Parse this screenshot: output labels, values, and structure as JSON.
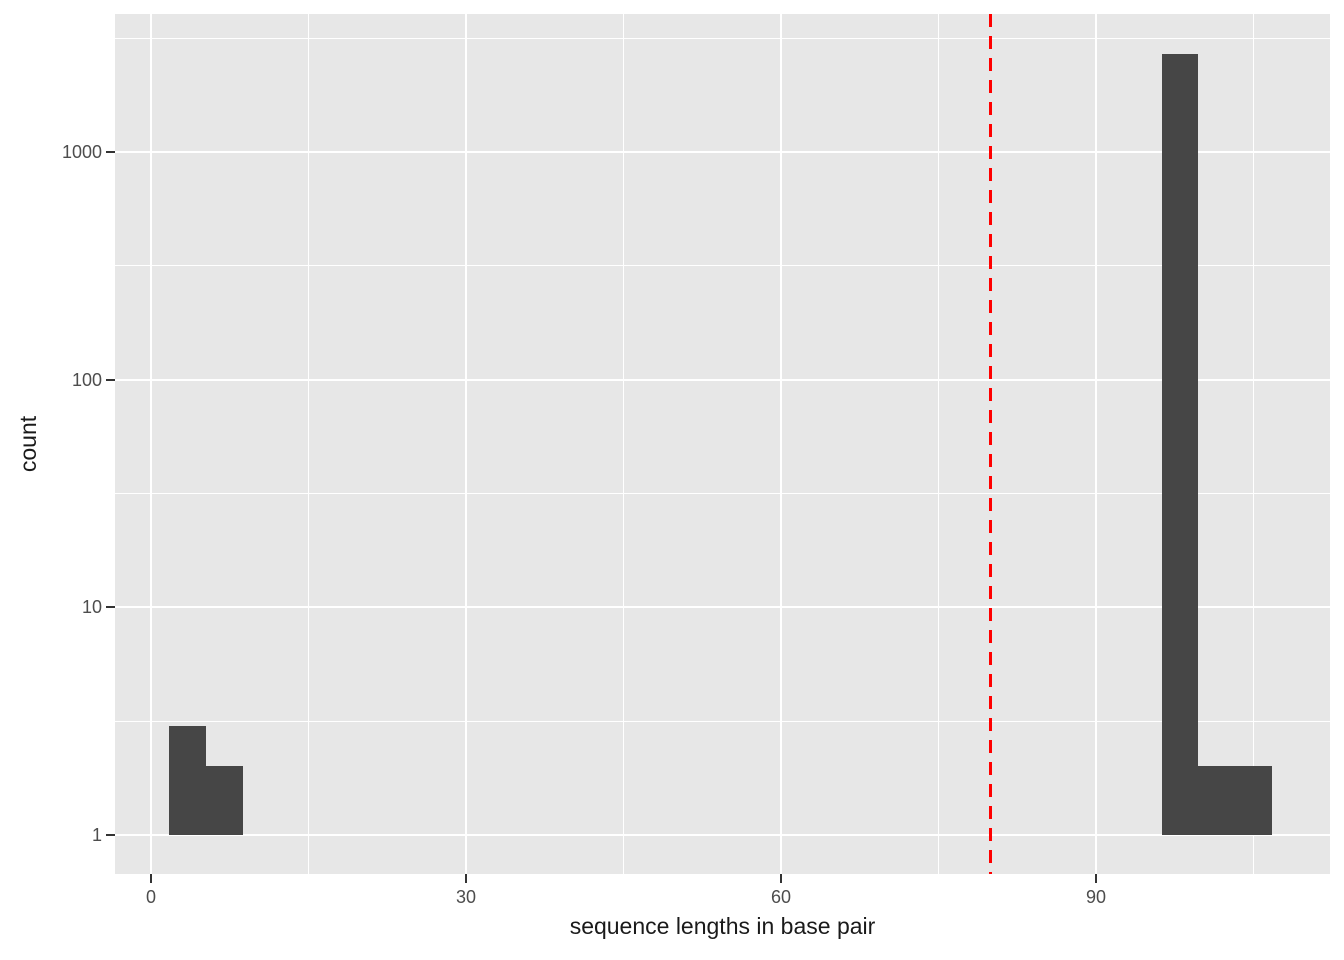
{
  "figure": {
    "background": "#FFFFFF",
    "panel_background": "#E7E7E7",
    "grid_color": "#FFFFFF",
    "tick_mark_color": "#333333",
    "tick_label_color": "#4D4D4D",
    "axis_title_color": "#1A1A1A"
  },
  "chart_data": {
    "type": "bar",
    "subtype": "histogram",
    "title": "",
    "xlabel": "sequence lengths in base pair",
    "ylabel": "count",
    "y_scale": "log10",
    "grid": true,
    "legend_position": "none",
    "bar_color": "#464646",
    "xlim": [
      -3.43,
      112.29
    ],
    "ylim_log10": [
      -0.172,
      3.607
    ],
    "x_major_ticks": [
      0,
      30,
      60,
      90
    ],
    "x_minor_gridlines": [
      15,
      45,
      75,
      105
    ],
    "y_major_ticks": [
      1,
      10,
      100,
      1000
    ],
    "y_minor_gridlines": [
      3.1623,
      31.623,
      316.23,
      3162.3
    ],
    "x_tick_labels": [
      "0",
      "30",
      "60",
      "90"
    ],
    "y_tick_labels": [
      "1",
      "10",
      "100",
      "1000"
    ],
    "bins": [
      {
        "x0": 1.75,
        "x1": 5.25,
        "count": 3
      },
      {
        "x0": 5.25,
        "x1": 8.75,
        "count": 2
      },
      {
        "x0": 96.25,
        "x1": 99.75,
        "count": 2700
      },
      {
        "x0": 99.75,
        "x1": 103.25,
        "count": 2
      },
      {
        "x0": 103.25,
        "x1": 106.75,
        "count": 2
      }
    ],
    "bar_baseline_count": 1,
    "vline": {
      "x": 80,
      "color": "#FF0000",
      "style": "dashed",
      "width": 3
    }
  }
}
